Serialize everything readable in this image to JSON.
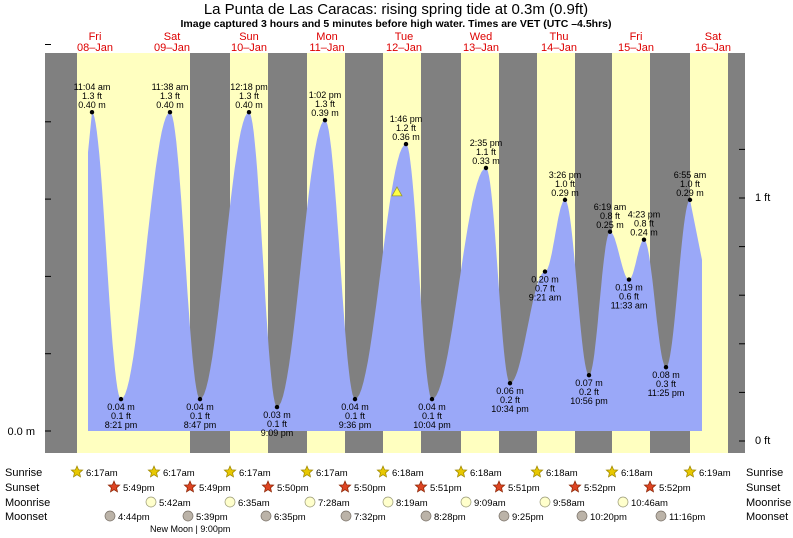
{
  "title": "La Punta de Las Caracas: rising  spring tide at 0.3m (0.9ft)",
  "subtitle": "Image captured 3 hours and 5 minutes before high water. Times are VET (UTC –4.5hrs)",
  "colors": {
    "night": "#808080",
    "day": "#ffffc0",
    "tide": "#9aa8f8",
    "header": "#dd0000",
    "sun_rise": "#e8c800",
    "sun_set": "#dd4422",
    "moon_rise": "#ffffcc",
    "moon_set": "#bbb3a8"
  },
  "chart_data": {
    "type": "area",
    "y_unit": "m",
    "left_axis": {
      "label": "0.0 m",
      "value": 0.0
    },
    "right_axis": [
      {
        "label": "1 ft",
        "value_m": 0.3048
      },
      {
        "label": "0 ft",
        "value_m": 0.0
      }
    ],
    "ylim": [
      0,
      0.5
    ],
    "days": [
      {
        "dow": "Fri",
        "date": "08–Jan"
      },
      {
        "dow": "Sat",
        "date": "09–Jan"
      },
      {
        "dow": "Sun",
        "date": "10–Jan"
      },
      {
        "dow": "Mon",
        "date": "11–Jan"
      },
      {
        "dow": "Tue",
        "date": "12–Jan"
      },
      {
        "dow": "Wed",
        "date": "13–Jan"
      },
      {
        "dow": "Thu",
        "date": "14–Jan"
      },
      {
        "dow": "Fri",
        "date": "15–Jan"
      },
      {
        "dow": "Sat",
        "date": "16–Jan"
      }
    ],
    "extremes": [
      {
        "kind": "high",
        "time": "11:04 am",
        "ft": "1.3 ft",
        "m": 0.4
      },
      {
        "kind": "low",
        "time": "8:21 pm",
        "ft": "0.1 ft",
        "m": 0.04
      },
      {
        "kind": "high",
        "time": "11:38 am",
        "ft": "1.3 ft",
        "m": 0.4
      },
      {
        "kind": "low",
        "time": "8:47 pm",
        "ft": "0.1 ft",
        "m": 0.04
      },
      {
        "kind": "high",
        "time": "12:18 pm",
        "ft": "1.3 ft",
        "m": 0.4
      },
      {
        "kind": "low",
        "time": "9:09 pm",
        "ft": "0.1 ft",
        "m": 0.03
      },
      {
        "kind": "high",
        "time": "1:02 pm",
        "ft": "1.3 ft",
        "m": 0.39
      },
      {
        "kind": "low",
        "time": "9:36 pm",
        "ft": "0.1 ft",
        "m": 0.04
      },
      {
        "kind": "high",
        "time": "1:46 pm",
        "ft": "1.2 ft",
        "m": 0.36
      },
      {
        "kind": "low",
        "time": "10:04 pm",
        "ft": "0.1 ft",
        "m": 0.04
      },
      {
        "kind": "high",
        "time": "2:35 pm",
        "ft": "1.1 ft",
        "m": 0.33
      },
      {
        "kind": "low",
        "time": "10:34 pm",
        "ft": "0.2 ft",
        "m": 0.06
      },
      {
        "kind": "low",
        "time": "9:21 am",
        "ft": "0.7 ft",
        "m": 0.2
      },
      {
        "kind": "high",
        "time": "3:26 pm",
        "ft": "1.0 ft",
        "m": 0.29
      },
      {
        "kind": "low",
        "time": "10:56 pm",
        "ft": "0.2 ft",
        "m": 0.07
      },
      {
        "kind": "high",
        "time": "6:19 am",
        "ft": "0.8 ft",
        "m": 0.25
      },
      {
        "kind": "low",
        "time": "11:33 am",
        "ft": "0.6 ft",
        "m": 0.19
      },
      {
        "kind": "high",
        "time": "4:23 pm",
        "ft": "0.8 ft",
        "m": 0.24
      },
      {
        "kind": "low",
        "time": "11:25 pm",
        "ft": "0.3 ft",
        "m": 0.08
      },
      {
        "kind": "high",
        "time": "6:55 am",
        "ft": "1.0 ft",
        "m": 0.29
      }
    ],
    "current_marker": {
      "m": 0.3
    }
  },
  "legend_labels": [
    "Sunrise",
    "Sunset",
    "Moonrise",
    "Moonset"
  ],
  "sunrise": [
    "6:17am",
    "6:17am",
    "6:17am",
    "6:17am",
    "6:18am",
    "6:18am",
    "6:18am",
    "6:18am",
    "6:19am"
  ],
  "sunset": [
    "5:49pm",
    "5:49pm",
    "5:50pm",
    "5:50pm",
    "5:51pm",
    "5:51pm",
    "5:52pm",
    "5:52pm"
  ],
  "moonrise": [
    "5:42am",
    "6:35am",
    "7:28am",
    "8:19am",
    "9:09am",
    "9:58am",
    "10:46am"
  ],
  "moonset": [
    "4:44pm",
    "5:39pm",
    "6:35pm",
    "7:32pm",
    "8:28pm",
    "9:25pm",
    "10:20pm",
    "11:16pm"
  ],
  "new_moon": "New Moon | 9:00pm"
}
